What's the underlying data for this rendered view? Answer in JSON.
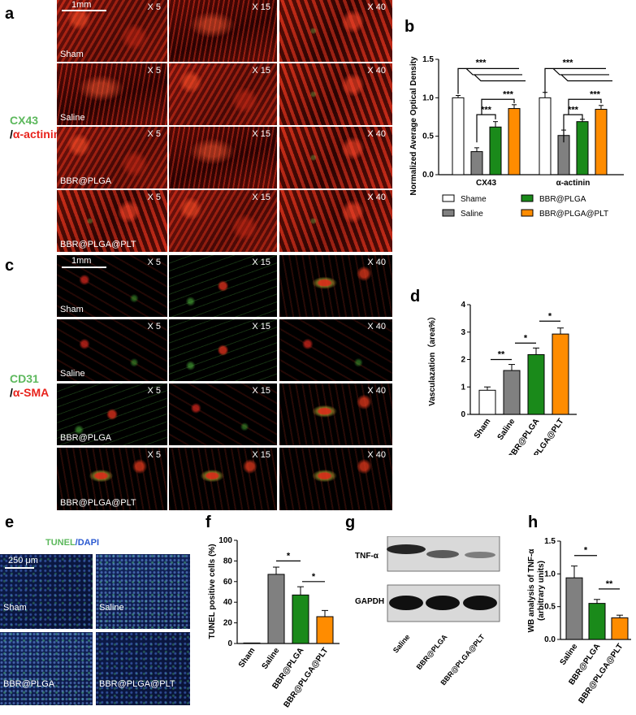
{
  "panels": {
    "a": "a",
    "b": "b",
    "c": "c",
    "d": "d",
    "e": "e",
    "f": "f",
    "g": "g",
    "h": "h"
  },
  "panel_a": {
    "stain_line1": "CX43",
    "stain_line2_prefix": "/",
    "stain_line2": "α-actinin",
    "scale_bar": "1mm",
    "magnifications": [
      "X 5",
      "X 15",
      "X 40"
    ],
    "groups": [
      "Sham",
      "Saline",
      "BBR@PLGA",
      "BBR@PLGA@PLT"
    ]
  },
  "panel_c": {
    "stain_line1": "CD31",
    "stain_line2_prefix": "/",
    "stain_line2": "α-SMA",
    "scale_bar": "1mm",
    "magnifications": [
      "X 5",
      "X 15",
      "X 40"
    ],
    "groups": [
      "Sham",
      "Saline",
      "BBR@PLGA",
      "BBR@PLGA@PLT"
    ]
  },
  "panel_e": {
    "title_part1": "TUNEL",
    "title_sep": "/",
    "title_part2": "DAPI",
    "scale_bar": "250 μm",
    "groups": [
      "Sham",
      "Saline",
      "BBR@PLGA",
      "BBR@PLGA@PLT"
    ]
  },
  "panel_g": {
    "bands": [
      "TNF-α",
      "GAPDH"
    ],
    "lanes": [
      "Saline",
      "BBR@PLGA",
      "BBR@PLGA@PLT"
    ]
  },
  "colors": {
    "sham": "#ffffff",
    "saline": "#808080",
    "bbr_plga": "#1a8a1a",
    "bbr_plga_plt": "#ff8c00"
  },
  "chart_data": [
    {
      "id": "b",
      "type": "bar",
      "ylabel": "Normalized Average Optical Density",
      "categories": [
        "CX43",
        "α-actinin"
      ],
      "series": [
        {
          "name": "Shame",
          "values": [
            1.0,
            1.0
          ],
          "errors": [
            0.03,
            0.07
          ]
        },
        {
          "name": "Saline",
          "values": [
            0.3,
            0.51
          ],
          "errors": [
            0.05,
            0.07
          ]
        },
        {
          "name": "BBR@PLGA",
          "values": [
            0.62,
            0.69
          ],
          "errors": [
            0.07,
            0.03
          ]
        },
        {
          "name": "BBR@PLGA@PLT",
          "values": [
            0.86,
            0.85
          ],
          "errors": [
            0.05,
            0.05
          ]
        }
      ],
      "ylim": [
        0,
        1.5
      ],
      "yticks": [
        "0.0",
        "0.5",
        "1.0",
        "1.5"
      ],
      "significance": [
        "***",
        "***",
        "***",
        "***",
        "***",
        "***"
      ],
      "legend_placement": "bottom"
    },
    {
      "id": "d",
      "type": "bar",
      "ylabel": "Vasculazation（area%）",
      "categories": [
        "Sham",
        "Saline",
        "BBR@PLGA",
        "BBR@PLGA@PLT"
      ],
      "values": [
        0.88,
        1.6,
        2.18,
        2.93
      ],
      "errors": [
        0.12,
        0.22,
        0.24,
        0.22
      ],
      "ylim": [
        0,
        4
      ],
      "yticks": [
        "0",
        "1",
        "2",
        "3",
        "4"
      ],
      "significance": [
        "**",
        "*",
        "*"
      ]
    },
    {
      "id": "f",
      "type": "bar",
      "ylabel": "TUNEL positive cells (%)",
      "categories": [
        "Sham",
        "Saline",
        "BBR@PLGA",
        "BBR@PLGA@PLT"
      ],
      "values": [
        0.5,
        67,
        47,
        26
      ],
      "errors": [
        0.3,
        7,
        8,
        6
      ],
      "ylim": [
        0,
        100
      ],
      "yticks": [
        "0",
        "20",
        "40",
        "60",
        "80",
        "100"
      ],
      "significance": [
        "*",
        "*"
      ]
    },
    {
      "id": "h",
      "type": "bar",
      "ylabel_line1": "WB analysis of TNF-α",
      "ylabel_line2": "(arbitrary units)",
      "categories": [
        "Saline",
        "BBR@PLGA",
        "BBR@PLGA@PLT"
      ],
      "values": [
        0.94,
        0.55,
        0.33
      ],
      "errors": [
        0.18,
        0.06,
        0.04
      ],
      "ylim": [
        0,
        1.5
      ],
      "yticks": [
        "0.0",
        "0.5",
        "1.0",
        "1.5"
      ],
      "significance": [
        "*",
        "**"
      ]
    }
  ]
}
